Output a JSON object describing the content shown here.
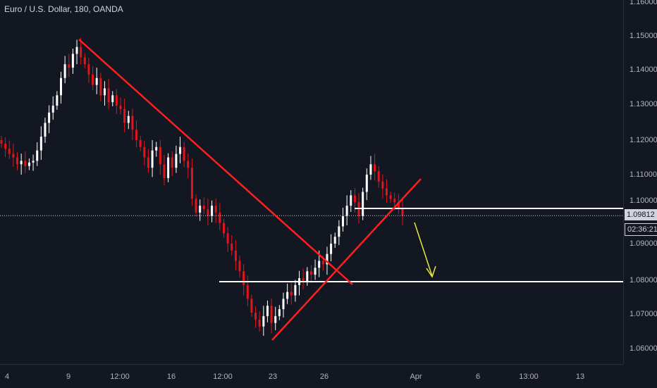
{
  "symbol": {
    "title": "Euro / U.S. Dollar, 180, OANDA"
  },
  "price_axis": {
    "ticks": [
      "1.16000",
      "1.15000",
      "1.14000",
      "1.13000",
      "1.12000",
      "1.11000",
      "1.10000",
      "1.09000",
      "1.08000",
      "1.07000",
      "1.06000"
    ],
    "current_price": "1.09812",
    "countdown": "02:36:21"
  },
  "time_axis": {
    "ticks": [
      "4",
      "9",
      "12:00",
      "16",
      "12:00",
      "23",
      "26",
      "Apr",
      "6",
      "13:00",
      "13"
    ]
  },
  "colors": {
    "background": "#131722",
    "up_candle": "#ffffff",
    "down_candle": "#e0161c",
    "trendline": "#ff1f1f",
    "level": "#ffffff",
    "arrow": "#e8e83c"
  },
  "chart_data": {
    "type": "candlestick",
    "ylim": [
      1.055,
      1.161
    ],
    "annotations": [
      {
        "kind": "trendline",
        "color": "red",
        "from_price": 1.149,
        "to_price": 1.0785
      },
      {
        "kind": "trendline",
        "color": "red",
        "from_price": 1.0625,
        "to_price": 1.1085
      },
      {
        "kind": "horizontal-level",
        "color": "white",
        "price": 1.0785
      },
      {
        "kind": "horizontal-level",
        "color": "white",
        "price": 1.1
      },
      {
        "kind": "arrow",
        "color": "yellow",
        "direction": "down",
        "to_price": 1.0805
      }
    ],
    "closes": [
      1.119,
      1.1175,
      1.116,
      1.115,
      1.113,
      1.114,
      1.1125,
      1.1135,
      1.114,
      1.117,
      1.121,
      1.125,
      1.128,
      1.13,
      1.133,
      1.138,
      1.142,
      1.141,
      1.145,
      1.147,
      1.144,
      1.142,
      1.139,
      1.136,
      1.138,
      1.133,
      1.135,
      1.131,
      1.133,
      1.13,
      1.129,
      1.125,
      1.127,
      1.123,
      1.12,
      1.118,
      1.115,
      1.112,
      1.117,
      1.118,
      1.113,
      1.109,
      1.115,
      1.112,
      1.116,
      1.118,
      1.114,
      1.112,
      1.103,
      1.099,
      1.101,
      1.1,
      1.098,
      1.101,
      1.099,
      1.096,
      1.093,
      1.09,
      1.088,
      1.085,
      1.082,
      1.078,
      1.074,
      1.07,
      1.068,
      1.066,
      1.069,
      1.072,
      1.067,
      1.069,
      1.071,
      1.074,
      1.076,
      1.075,
      1.078,
      1.08,
      1.079,
      1.082,
      1.081,
      1.083,
      1.085,
      1.084,
      1.087,
      1.09,
      1.092,
      1.095,
      1.098,
      1.101,
      1.104,
      1.102,
      1.098,
      1.105,
      1.11,
      1.113,
      1.111,
      1.108,
      1.106,
      1.104,
      1.103,
      1.102,
      1.1,
      1.0981
    ]
  }
}
